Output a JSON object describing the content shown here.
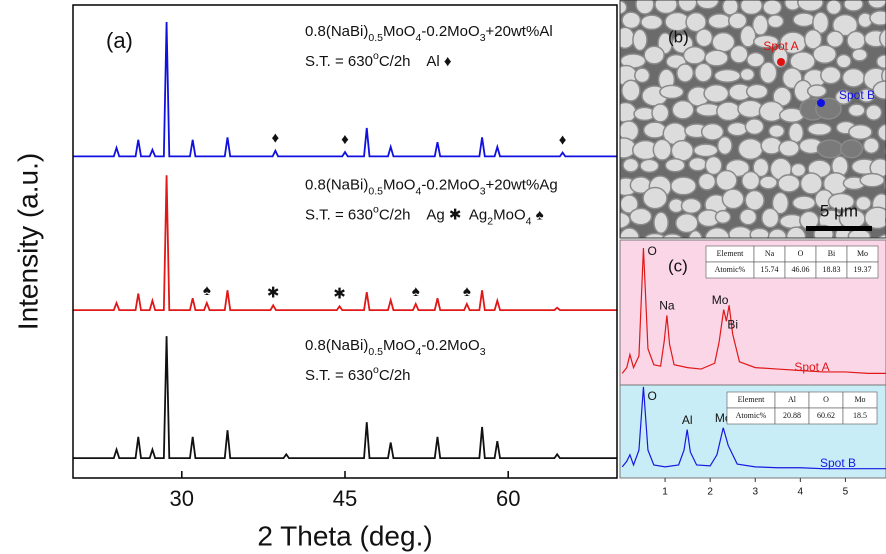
{
  "chart_data": [
    {
      "type": "line",
      "panel_label": "(a)",
      "xlabel": "2 Theta (deg.)",
      "ylabel": "Intensity (a.u.)",
      "xlim": [
        20,
        70
      ],
      "ylim": [
        0,
        100
      ],
      "xticks": [
        30,
        45,
        60
      ],
      "series": [
        {
          "label": [
            "0.8(NaBi)",
            {
              "sub": "0.5"
            },
            "MoO",
            {
              "sub": "4"
            },
            "-0.2MoO",
            {
              "sub": "3"
            },
            "+20wt%Al"
          ],
          "condition": [
            "S.T. = 630",
            {
              "sup": "o"
            },
            "C/2h    Al ♦"
          ],
          "color": "#1010e0",
          "x": [
            20,
            23.75,
            24,
            24.25,
            25.75,
            26,
            26.25,
            27.05,
            27.3,
            27.55,
            28.35,
            28.6,
            28.85,
            30.75,
            31,
            31.25,
            33.95,
            34.2,
            34.45,
            38.35,
            38.6,
            38.85,
            44.75,
            45,
            45.25,
            46.75,
            47,
            47.25,
            48.95,
            49.2,
            49.45,
            53.25,
            53.5,
            53.75,
            57.35,
            57.6,
            57.85,
            58.75,
            59,
            59.25,
            64.75,
            65,
            65.25,
            70
          ],
          "values": [
            68,
            68,
            69.8,
            68,
            68,
            71.5,
            68,
            68,
            69.4,
            68,
            68,
            96.4,
            68,
            68,
            71.5,
            68,
            68,
            72,
            68,
            68,
            69.2,
            68,
            68,
            68.9,
            68,
            68,
            74,
            68,
            68,
            70,
            68,
            68,
            71,
            68,
            68,
            72,
            68,
            68,
            70,
            68,
            68,
            68.8,
            68,
            68
          ],
          "markers": [
            {
              "symbol": "♦",
              "x": 38.6
            },
            {
              "symbol": "♦",
              "x": 45
            },
            {
              "symbol": "♦",
              "x": 65
            }
          ]
        },
        {
          "label": [
            "0.8(NaBi)",
            {
              "sub": "0.5"
            },
            "MoO",
            {
              "sub": "4"
            },
            "-0.2MoO",
            {
              "sub": "3"
            },
            "+20wt%Ag"
          ],
          "condition": [
            "S.T. = 630",
            {
              "sup": "o"
            },
            "C/2h    Ag ✱  Ag",
            {
              "sub": "2"
            },
            "MoO",
            {
              "sub": "4"
            },
            " ♠"
          ],
          "color": "#e01818",
          "x": [
            20,
            23.75,
            24,
            24.25,
            25.75,
            26,
            26.25,
            27.05,
            27.3,
            27.55,
            28.35,
            28.6,
            28.85,
            30.75,
            31,
            31.25,
            32.05,
            32.3,
            32.55,
            33.95,
            34.2,
            34.45,
            38.15,
            38.4,
            38.65,
            44.25,
            44.5,
            44.75,
            46.75,
            47,
            47.25,
            48.95,
            49.2,
            49.45,
            51.25,
            51.5,
            51.75,
            53.25,
            53.5,
            53.75,
            55.95,
            56.2,
            56.45,
            57.35,
            57.6,
            57.85,
            58.75,
            59,
            59.25,
            64.25,
            64.5,
            64.75,
            70
          ],
          "values": [
            35.5,
            35.5,
            37,
            35.5,
            35.5,
            39,
            35.5,
            35.5,
            37.5,
            35.5,
            35.5,
            64,
            35.5,
            35.5,
            38,
            35.5,
            35.5,
            37,
            35.5,
            35.5,
            39.7,
            35.5,
            35.5,
            36.5,
            35.5,
            35.5,
            36.3,
            35.5,
            35.5,
            39.3,
            35.5,
            35.5,
            37.6,
            35.5,
            35.5,
            36.8,
            35.5,
            35.5,
            38,
            35.5,
            35.5,
            36.8,
            35.5,
            35.5,
            39.7,
            35.5,
            35.5,
            37.5,
            35.5,
            35.5,
            36,
            35.5,
            35.5
          ],
          "markers": [
            {
              "symbol": "♠",
              "x": 32.3
            },
            {
              "symbol": "✱",
              "x": 38.4
            },
            {
              "symbol": "✱",
              "x": 44.5
            },
            {
              "symbol": "♠",
              "x": 51.5
            },
            {
              "symbol": "♠",
              "x": 56.2
            }
          ]
        },
        {
          "label": [
            "0.8(NaBi)",
            {
              "sub": "0.5"
            },
            "MoO",
            {
              "sub": "4"
            },
            "-0.2MoO",
            {
              "sub": "3"
            }
          ],
          "condition": [
            "S.T. = 630",
            {
              "sup": "o"
            },
            "C/2h"
          ],
          "color": "#111111",
          "x": [
            20,
            23.75,
            24,
            24.25,
            25.75,
            26,
            26.25,
            27.05,
            27.3,
            27.55,
            28.35,
            28.6,
            28.85,
            30.75,
            31,
            31.25,
            33.95,
            34.2,
            34.45,
            39.35,
            39.6,
            39.85,
            46.75,
            47,
            47.25,
            48.95,
            49.2,
            49.45,
            53.25,
            53.5,
            53.75,
            57.35,
            57.6,
            57.85,
            58.75,
            59,
            59.25,
            64.25,
            64.5,
            64.75,
            70
          ],
          "values": [
            4.2,
            4.2,
            6,
            4.2,
            4.2,
            8.7,
            4.2,
            4.2,
            6,
            4.2,
            4.2,
            30,
            4.2,
            4.2,
            8.7,
            4.2,
            4.2,
            10.1,
            4.2,
            4.2,
            5,
            4.2,
            4.2,
            11.8,
            4.2,
            4.2,
            7.5,
            4.2,
            4.2,
            8.7,
            4.2,
            4.2,
            10.8,
            4.2,
            4.2,
            7.8,
            4.2,
            4.2,
            5,
            4.2,
            4.2
          ],
          "markers": []
        }
      ]
    },
    {
      "type": "line",
      "panel_label": "(c)",
      "spot": "Spot A",
      "color": "#e01818",
      "background": "#fbd6e7",
      "xlim": [
        0,
        5.9
      ],
      "ylim": [
        0,
        100
      ],
      "x": [
        0.05,
        0.15,
        0.22,
        0.3,
        0.42,
        0.52,
        0.62,
        0.75,
        0.9,
        0.98,
        1.04,
        1.1,
        1.2,
        1.5,
        1.8,
        2.1,
        2.2,
        2.3,
        2.36,
        2.42,
        2.5,
        2.65,
        3,
        3.5,
        4,
        4.5,
        5,
        5.5,
        5.9
      ],
      "values": [
        8,
        12,
        21,
        12,
        20,
        94.5,
        25,
        14,
        13,
        30,
        48,
        28,
        14,
        12,
        11,
        15,
        30,
        52,
        44,
        55,
        35,
        16,
        12,
        11,
        10,
        9,
        9,
        8,
        8
      ],
      "peak_labels": [
        {
          "text": "O",
          "x": 0.52
        },
        {
          "text": "Na",
          "x": 1.04
        },
        {
          "text": "Mo",
          "x": 2.22
        },
        {
          "text": "Bi",
          "x": 2.5
        }
      ],
      "table": {
        "header": [
          "Element",
          "Na",
          "O",
          "Bi",
          "Mo"
        ],
        "rows": [
          [
            "Atomic%",
            "15.74",
            "46.06",
            "18.83",
            "19.37"
          ]
        ]
      }
    },
    {
      "type": "line",
      "spot": "Spot B",
      "color": "#1818e0",
      "background": "#c9edf6",
      "xlim": [
        0,
        5.9
      ],
      "ylim": [
        0,
        100
      ],
      "xticks": [
        1,
        2,
        3,
        4,
        5
      ],
      "x": [
        0.05,
        0.15,
        0.22,
        0.3,
        0.42,
        0.52,
        0.62,
        0.75,
        1.0,
        1.3,
        1.42,
        1.49,
        1.56,
        1.7,
        2.0,
        2.15,
        2.29,
        2.4,
        2.6,
        3,
        3.5,
        4,
        4.5,
        5,
        5.5,
        5.9
      ],
      "values": [
        12,
        18,
        25,
        14,
        30,
        98,
        30,
        14,
        12,
        14,
        30,
        52,
        28,
        14,
        13,
        25,
        54,
        35,
        15,
        12,
        11,
        11,
        10,
        10,
        10,
        10
      ],
      "peak_labels": [
        {
          "text": "O",
          "x": 0.52
        },
        {
          "text": "Al",
          "x": 1.49
        },
        {
          "text": "Mo",
          "x": 2.29
        }
      ],
      "table": {
        "header": [
          "Element",
          "Al",
          "O",
          "Mo"
        ],
        "rows": [
          [
            "Atomic%",
            "20.88",
            "60.62",
            "18.5"
          ]
        ]
      }
    }
  ],
  "sem": {
    "panel_label": "(b)",
    "spots": [
      "Spot A",
      "Spot B"
    ],
    "scale_bar": "5 μm"
  }
}
